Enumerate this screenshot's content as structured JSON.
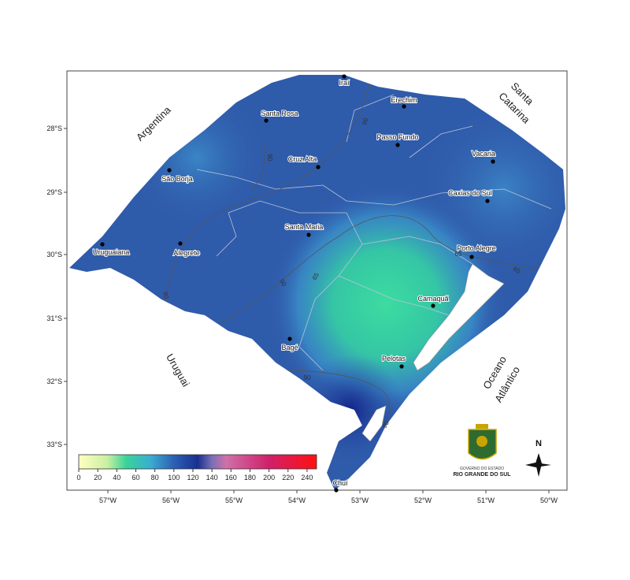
{
  "map": {
    "cities": [
      "Iraí",
      "Erechim",
      "Santa Rosa",
      "Passo Fundo",
      "Cruz Alta",
      "Vacaria",
      "São Borja",
      "Caxias do Sul",
      "Santa Maria",
      "Uruguaiana",
      "Alegrete",
      "Porto Alegre",
      "Camaquã",
      "Bagé",
      "Pelotas",
      "Chuí"
    ],
    "regions": [
      "Argentina",
      "Santa",
      "Catarina",
      "Uruguai",
      "Oceano",
      "Atlântico"
    ],
    "lat_ticks": [
      "28°S",
      "29°S",
      "30°S",
      "31°S",
      "32°S",
      "33°S"
    ],
    "lon_ticks": [
      "57°W",
      "56°W",
      "55°W",
      "54°W",
      "53°W",
      "52°W",
      "51°W",
      "50°W"
    ],
    "contour_labels": [
      "90",
      "90",
      "65",
      "90",
      "65",
      "65",
      "90",
      "90",
      "90"
    ],
    "colorbar": {
      "lim": [
        0,
        250
      ],
      "ticks": [
        0,
        20,
        40,
        60,
        80,
        100,
        120,
        140,
        160,
        180,
        200,
        220,
        240
      ]
    },
    "logo": [
      "GOVERNO DO ESTADO",
      "RIO GRANDE DO SUL"
    ],
    "north": "N"
  }
}
